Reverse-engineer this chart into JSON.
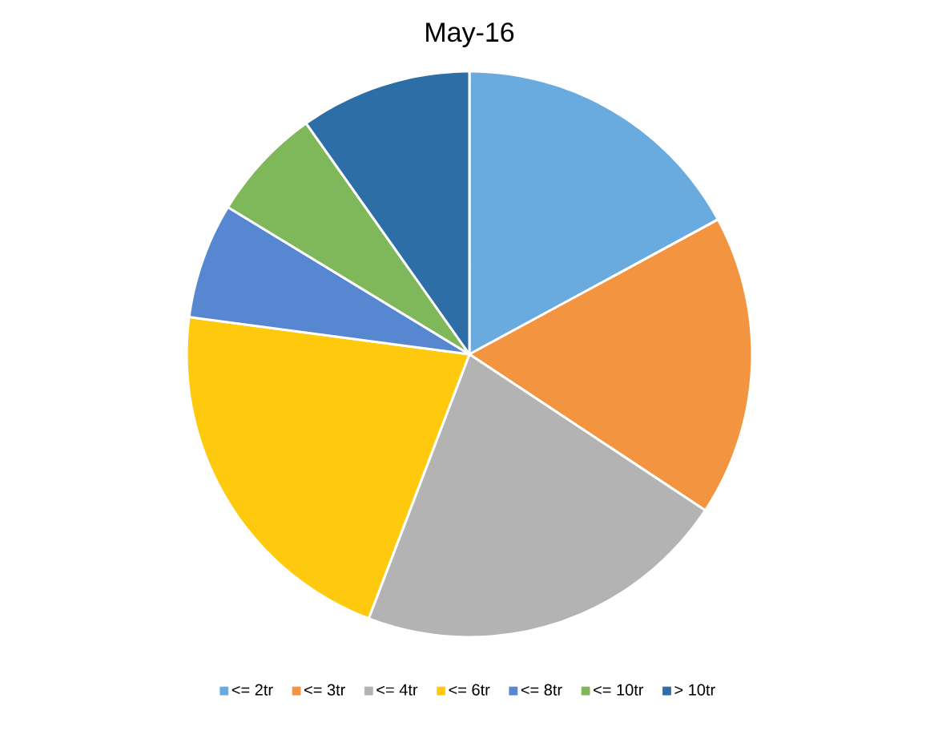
{
  "chart_data": {
    "type": "pie",
    "title": "May-16",
    "categories": [
      "<= 2tr",
      "<= 3tr",
      "<= 4tr",
      "<= 6tr",
      "<= 8tr",
      "<= 10tr",
      "> 10tr"
    ],
    "values": [
      17.1,
      17.2,
      21.5,
      21.3,
      6.6,
      6.5,
      9.8
    ],
    "colors": [
      "#6aabdf",
      "#f29440",
      "#b3b3b3",
      "#ffc90e",
      "#5687d0",
      "#7eb85a",
      "#2e6ea6"
    ],
    "legend": "bottom"
  }
}
